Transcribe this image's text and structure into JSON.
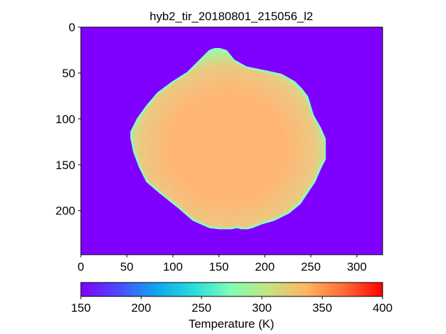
{
  "chart_data": {
    "type": "heatmap",
    "title": "hyb2_tir_20180801_215056_l2",
    "xlabel": "",
    "ylabel": "",
    "image_size": [
      328,
      248
    ],
    "xlim": [
      0,
      328
    ],
    "ylim": [
      248,
      0
    ],
    "y_inverted": true,
    "x_ticks": [
      0,
      50,
      100,
      150,
      200,
      250,
      300
    ],
    "y_ticks": [
      0,
      50,
      100,
      150,
      200
    ],
    "colormap": "rainbow",
    "background_value": 150,
    "colorbar": {
      "label": "Temperature (K)",
      "range": [
        150,
        400
      ],
      "ticks": [
        150,
        200,
        250,
        300,
        350,
        400
      ],
      "orientation": "horizontal",
      "placement": "bottom"
    },
    "object": {
      "description_outline_pixels": [
        [
          148,
          23
        ],
        [
          158,
          26
        ],
        [
          166,
          36
        ],
        [
          180,
          44
        ],
        [
          200,
          48
        ],
        [
          218,
          52
        ],
        [
          232,
          60
        ],
        [
          240,
          68
        ],
        [
          246,
          76
        ],
        [
          252,
          96
        ],
        [
          260,
          110
        ],
        [
          266,
          124
        ],
        [
          266,
          142
        ],
        [
          260,
          154
        ],
        [
          254,
          168
        ],
        [
          246,
          180
        ],
        [
          238,
          192
        ],
        [
          226,
          202
        ],
        [
          210,
          210
        ],
        [
          196,
          214
        ],
        [
          186,
          218
        ],
        [
          178,
          220
        ],
        [
          170,
          218
        ],
        [
          158,
          220
        ],
        [
          140,
          218
        ],
        [
          122,
          210
        ],
        [
          106,
          196
        ],
        [
          86,
          180
        ],
        [
          72,
          168
        ],
        [
          64,
          152
        ],
        [
          58,
          136
        ],
        [
          54,
          116
        ],
        [
          62,
          100
        ],
        [
          72,
          86
        ],
        [
          84,
          72
        ],
        [
          100,
          60
        ],
        [
          116,
          50
        ],
        [
          132,
          34
        ],
        [
          140,
          26
        ]
      ],
      "interior_temperature": 340,
      "edge_temperature": 270
    }
  }
}
